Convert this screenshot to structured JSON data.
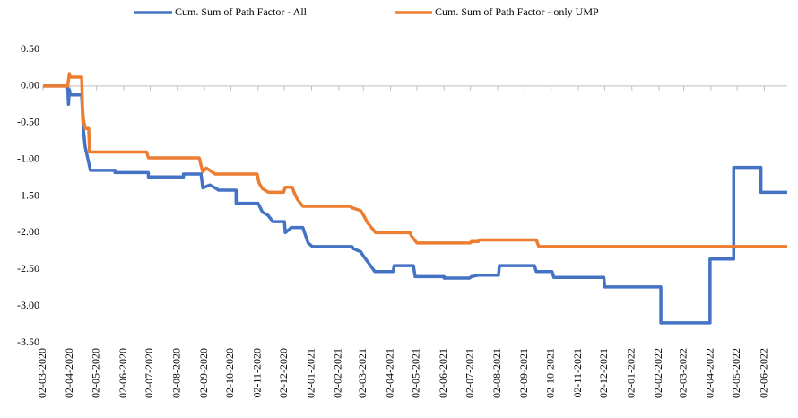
{
  "chart_data": {
    "type": "line",
    "xlim": [
      "02-03-2020",
      "28-06-2022"
    ],
    "xticks": [
      "02-03-2020",
      "02-04-2020",
      "02-05-2020",
      "02-06-2020",
      "02-07-2020",
      "02-08-2020",
      "02-09-2020",
      "02-10-2020",
      "02-11-2020",
      "02-12-2020",
      "02-01-2021",
      "02-02-2021",
      "02-03-2021",
      "02-04-2021",
      "02-05-2021",
      "02-06-2021",
      "02-07-2021",
      "02-08-2021",
      "02-09-2021",
      "02-10-2021",
      "02-11-2021",
      "02-12-2021",
      "02-01-2022",
      "02-02-2022",
      "02-03-2022",
      "02-04-2022",
      "02-05-2022",
      "02-06-2022"
    ],
    "ylim": [
      -3.5,
      0.5
    ],
    "yticks": [
      {
        "value": 0.5,
        "label": "0.50"
      },
      {
        "value": 0,
        "label": "0.00"
      },
      {
        "value": -0.5,
        "label": "-0.50"
      },
      {
        "value": -1,
        "label": "-1.00"
      },
      {
        "value": -1.5,
        "label": "-1.50"
      },
      {
        "value": -2,
        "label": "-2.00"
      },
      {
        "value": -2.5,
        "label": "-2.50"
      },
      {
        "value": -3,
        "label": "-3.00"
      },
      {
        "value": -3.5,
        "label": "-3.50"
      }
    ],
    "legend": "top",
    "series": [
      {
        "name": "Cum. Sum of Path Factor - All",
        "color": "#4472c4",
        "x": [
          "02-03-2020",
          "30-03-2020",
          "31-03-2020",
          "01-04-2020",
          "02-04-2020",
          "15-04-2020",
          "17-04-2020",
          "19-04-2020",
          "25-04-2020",
          "23-05-2020",
          "23-05-2020",
          "30-06-2020",
          "30-06-2020",
          "09-08-2020",
          "09-08-2020",
          "29-08-2020",
          "31-08-2020",
          "08-09-2020",
          "14-09-2020",
          "18-09-2020",
          "08-10-2020",
          "08-10-2020",
          "02-11-2020",
          "07-11-2020",
          "13-11-2020",
          "19-11-2020",
          "02-12-2020",
          "03-12-2020",
          "10-12-2020",
          "23-12-2020",
          "25-12-2020",
          "29-12-2020",
          "03-01-2021",
          "17-02-2021",
          "19-02-2021",
          "27-02-2021",
          "01-03-2021",
          "04-03-2021",
          "09-03-2021",
          "15-03-2021",
          "05-04-2021",
          "06-04-2021",
          "28-04-2021",
          "30-04-2021",
          "02-06-2021",
          "02-06-2021",
          "01-07-2021",
          "03-07-2021",
          "11-07-2021",
          "03-08-2021",
          "04-08-2021",
          "13-09-2021",
          "15-09-2021",
          "03-10-2021",
          "05-10-2021",
          "01-12-2021",
          "02-12-2021",
          "04-02-2022",
          "04-02-2022",
          "01-04-2022",
          "01-04-2022",
          "28-04-2022",
          "28-04-2022",
          "29-05-2022",
          "29-05-2022",
          "28-06-2022"
        ],
        "values": [
          0,
          0,
          -0.25,
          -0.05,
          -0.12,
          -0.12,
          -0.6,
          -0.83,
          -1.15,
          -1.15,
          -1.18,
          -1.18,
          -1.24,
          -1.24,
          -1.2,
          -1.2,
          -1.39,
          -1.35,
          -1.39,
          -1.42,
          -1.42,
          -1.6,
          -1.6,
          -1.72,
          -1.76,
          -1.85,
          -1.85,
          -2.0,
          -1.93,
          -1.93,
          -2.0,
          -2.14,
          -2.19,
          -2.19,
          -2.22,
          -2.26,
          -2.3,
          -2.35,
          -2.43,
          -2.53,
          -2.53,
          -2.45,
          -2.45,
          -2.6,
          -2.6,
          -2.62,
          -2.62,
          -2.6,
          -2.58,
          -2.58,
          -2.45,
          -2.45,
          -2.53,
          -2.53,
          -2.61,
          -2.61,
          -2.74,
          -2.74,
          -3.23,
          -3.23,
          -2.36,
          -2.36,
          -1.11,
          -1.11,
          -1.45,
          -1.45
        ]
      },
      {
        "name": "Cum. Sum of Path Factor - only UMP",
        "color": "#ed7d31",
        "x": [
          "02-03-2020",
          "30-03-2020",
          "01-04-2020",
          "02-04-2020",
          "15-04-2020",
          "16-04-2020",
          "17-04-2020",
          "19-04-2020",
          "23-04-2020",
          "24-04-2020",
          "28-06-2020",
          "30-06-2020",
          "27-08-2020",
          "29-08-2020",
          "31-08-2020",
          "04-09-2020",
          "08-09-2020",
          "14-09-2020",
          "01-11-2020",
          "03-11-2020",
          "07-11-2020",
          "14-11-2020",
          "01-12-2020",
          "03-12-2020",
          "11-12-2020",
          "13-12-2020",
          "17-12-2020",
          "23-12-2020",
          "15-02-2021",
          "17-02-2021",
          "27-02-2021",
          "03-03-2021",
          "07-03-2021",
          "16-03-2021",
          "24-04-2021",
          "26-04-2021",
          "02-05-2021",
          "02-07-2021",
          "03-07-2021",
          "11-07-2021",
          "12-07-2021",
          "15-09-2021",
          "18-09-2021",
          "28-06-2022"
        ],
        "values": [
          0,
          0,
          0.17,
          0.12,
          0.12,
          -0.3,
          -0.45,
          -0.58,
          -0.58,
          -0.9,
          -0.9,
          -0.98,
          -0.98,
          -1.08,
          -1.17,
          -1.12,
          -1.15,
          -1.2,
          -1.2,
          -1.32,
          -1.4,
          -1.45,
          -1.45,
          -1.38,
          -1.38,
          -1.45,
          -1.55,
          -1.64,
          -1.64,
          -1.66,
          -1.7,
          -1.78,
          -1.87,
          -2.0,
          -2.0,
          -2.05,
          -2.14,
          -2.14,
          -2.12,
          -2.12,
          -2.1,
          -2.1,
          -2.19,
          -2.19
        ]
      }
    ]
  }
}
